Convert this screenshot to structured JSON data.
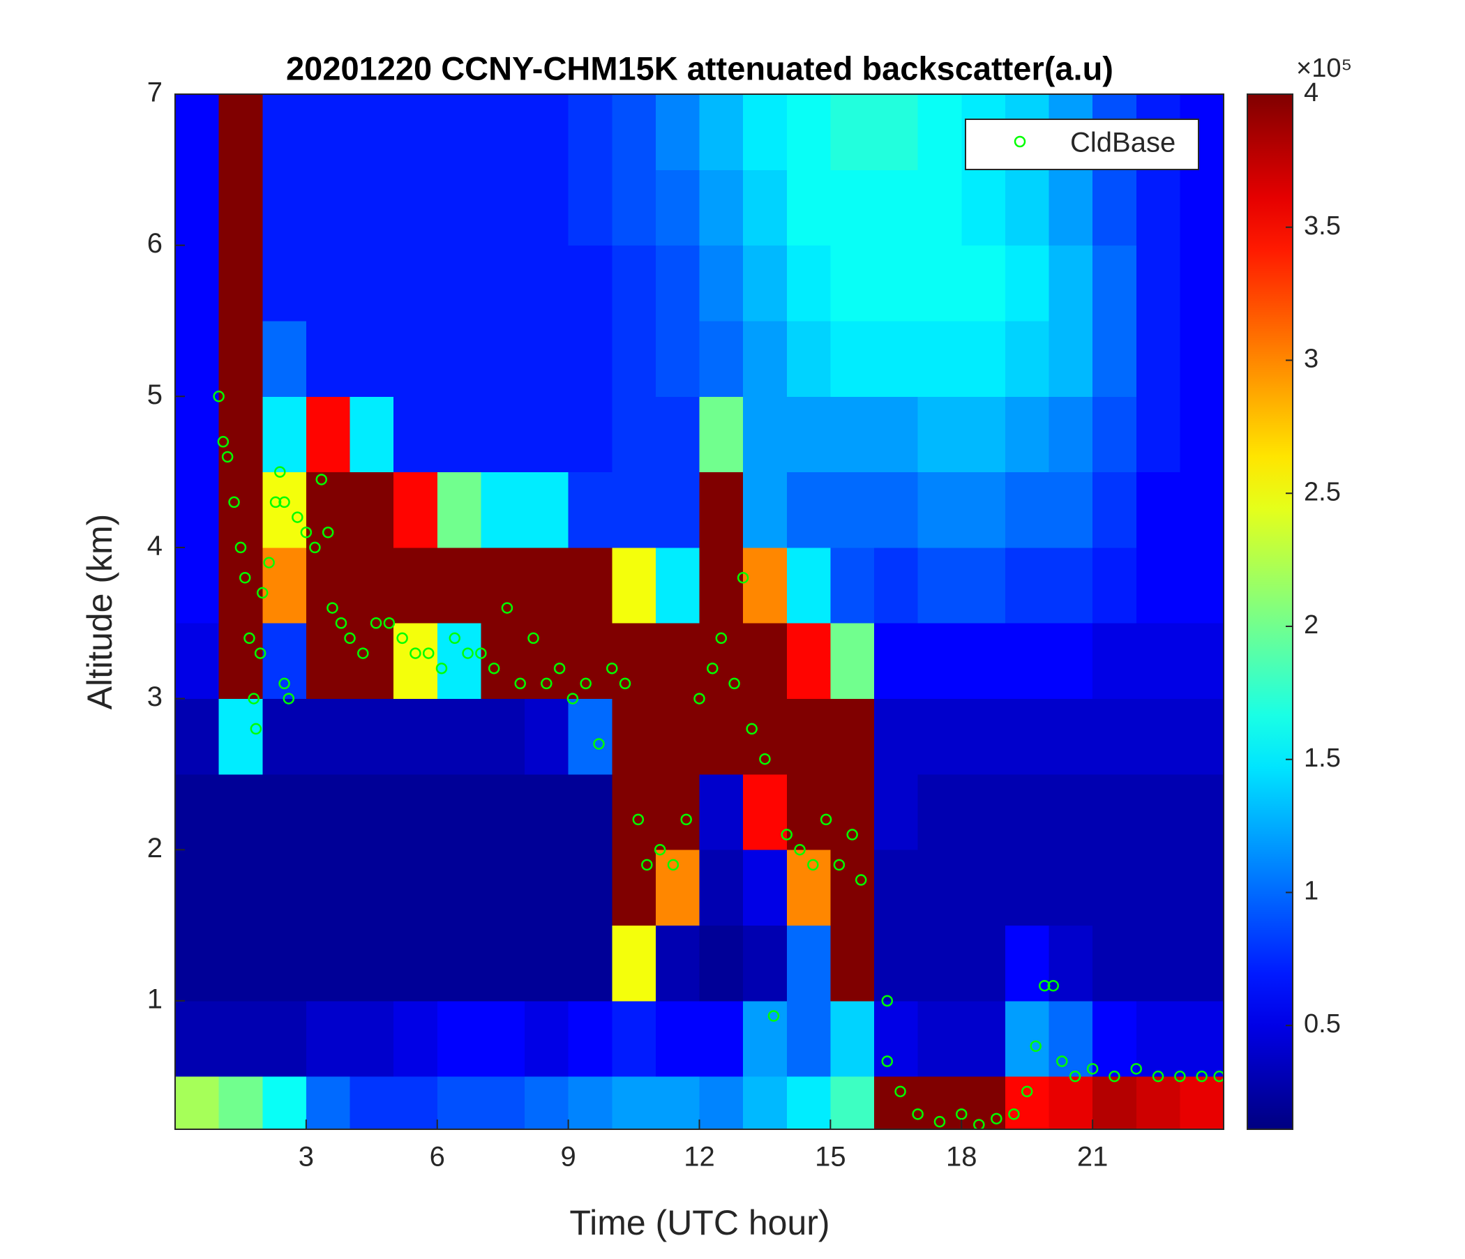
{
  "chart_data": {
    "type": "heatmap",
    "title": "20201220 CCNY-CHM15K attenuated backscatter(a.u)",
    "x_label": "Time (UTC hour)",
    "y_label": "Altitude (km)",
    "xlim": [
      0,
      24
    ],
    "ylim": [
      0.15,
      7
    ],
    "xticks": [
      3,
      6,
      9,
      12,
      15,
      18,
      21
    ],
    "yticks": [
      1,
      2,
      3,
      4,
      5,
      6,
      7
    ],
    "x_bins": [
      0,
      1,
      2,
      3,
      4,
      5,
      6,
      7,
      8,
      9,
      10,
      11,
      12,
      13,
      14,
      15,
      16,
      17,
      18,
      19,
      20,
      21,
      22,
      23,
      24
    ],
    "y_bins": [
      0.15,
      0.5,
      1,
      1.5,
      2,
      2.5,
      3,
      3.5,
      4,
      4.5,
      5,
      5.5,
      6,
      6.5,
      7
    ],
    "values": [
      [
        2.2,
        2.0,
        1.6,
        1.0,
        0.8,
        0.8,
        0.9,
        0.9,
        1.0,
        1.1,
        1.2,
        1.2,
        1.1,
        1.3,
        1.5,
        1.8,
        4,
        4,
        4,
        3.5,
        3.6,
        3.8,
        3.7,
        3.6
      ],
      [
        0.3,
        0.3,
        0.3,
        0.4,
        0.4,
        0.5,
        0.6,
        0.6,
        0.5,
        0.6,
        0.7,
        0.6,
        0.6,
        1.2,
        1.0,
        1.4,
        0.5,
        0.4,
        0.4,
        1.2,
        1.0,
        0.6,
        0.5,
        0.5
      ],
      [
        0.2,
        0.2,
        0.2,
        0.2,
        0.2,
        0.2,
        0.2,
        0.2,
        0.2,
        0.2,
        2.5,
        0.3,
        0.2,
        0.3,
        1.0,
        4,
        0.3,
        0.3,
        0.3,
        0.6,
        0.4,
        0.3,
        0.3,
        0.3
      ],
      [
        0.2,
        0.2,
        0.2,
        0.2,
        0.2,
        0.2,
        0.2,
        0.2,
        0.2,
        0.2,
        4,
        3.0,
        0.3,
        0.5,
        3.0,
        4,
        0.3,
        0.3,
        0.3,
        0.3,
        0.3,
        0.3,
        0.3,
        0.3
      ],
      [
        0.2,
        0.2,
        0.2,
        0.2,
        0.2,
        0.2,
        0.2,
        0.2,
        0.2,
        0.2,
        4,
        4,
        0.4,
        3.5,
        4,
        4,
        0.4,
        0.3,
        0.3,
        0.3,
        0.3,
        0.3,
        0.3,
        0.3
      ],
      [
        0.3,
        1.5,
        0.3,
        0.3,
        0.3,
        0.3,
        0.3,
        0.3,
        0.4,
        1.0,
        4,
        4,
        4,
        4,
        4,
        4,
        0.4,
        0.4,
        0.4,
        0.4,
        0.4,
        0.4,
        0.4,
        0.4
      ],
      [
        0.5,
        4,
        0.8,
        4,
        4,
        2.5,
        1.5,
        4,
        4,
        4,
        4,
        4,
        4,
        4,
        3.5,
        2.0,
        0.6,
        0.6,
        0.6,
        0.6,
        0.6,
        0.5,
        0.5,
        0.5
      ],
      [
        0.6,
        4,
        3.0,
        4,
        4,
        4,
        4,
        4,
        4,
        4,
        2.5,
        1.5,
        4,
        3.0,
        1.5,
        0.9,
        0.8,
        0.9,
        0.9,
        0.8,
        0.8,
        0.7,
        0.6,
        0.6
      ],
      [
        0.6,
        4,
        2.5,
        4,
        4,
        3.5,
        2.0,
        1.5,
        1.5,
        0.8,
        0.8,
        0.8,
        4,
        1.2,
        1.0,
        1.0,
        1.0,
        1.1,
        1.1,
        1.0,
        1.0,
        0.8,
        0.6,
        0.6
      ],
      [
        0.6,
        4,
        1.5,
        3.5,
        1.5,
        0.7,
        0.7,
        0.7,
        0.7,
        0.7,
        0.8,
        0.8,
        2.0,
        1.2,
        1.2,
        1.2,
        1.2,
        1.3,
        1.3,
        1.2,
        1.1,
        0.9,
        0.7,
        0.6
      ],
      [
        0.6,
        4,
        1.0,
        0.7,
        0.7,
        0.7,
        0.7,
        0.7,
        0.7,
        0.7,
        0.8,
        0.9,
        1.0,
        1.2,
        1.4,
        1.5,
        1.5,
        1.5,
        1.5,
        1.4,
        1.3,
        1.0,
        0.7,
        0.6
      ],
      [
        0.6,
        4,
        0.7,
        0.7,
        0.7,
        0.7,
        0.7,
        0.7,
        0.7,
        0.7,
        0.8,
        0.9,
        1.1,
        1.3,
        1.5,
        1.6,
        1.6,
        1.6,
        1.6,
        1.5,
        1.3,
        1.0,
        0.7,
        0.6
      ],
      [
        0.6,
        4,
        0.7,
        0.7,
        0.7,
        0.7,
        0.7,
        0.7,
        0.7,
        0.8,
        0.9,
        1.0,
        1.2,
        1.4,
        1.6,
        1.6,
        1.6,
        1.6,
        1.5,
        1.4,
        1.2,
        0.9,
        0.7,
        0.6
      ],
      [
        0.6,
        4,
        0.7,
        0.7,
        0.7,
        0.7,
        0.7,
        0.7,
        0.7,
        0.8,
        0.9,
        1.1,
        1.3,
        1.5,
        1.6,
        1.7,
        1.7,
        1.6,
        1.5,
        1.4,
        1.2,
        0.9,
        0.7,
        0.6
      ]
    ],
    "colormap": "jet",
    "clim": [
      0.11,
      4
    ],
    "cticks": [
      0.5,
      1,
      1.5,
      2,
      2.5,
      3,
      3.5,
      4
    ],
    "colorbar_scale": "×10⁵",
    "legend": "upper right",
    "series": [
      {
        "name": "CldBase",
        "type": "scatter",
        "color": "#00ff00",
        "x": [
          1.0,
          1.1,
          1.2,
          1.35,
          1.5,
          1.6,
          1.7,
          1.8,
          1.85,
          1.95,
          2.0,
          2.15,
          2.3,
          2.4,
          2.5,
          2.5,
          2.6,
          2.8,
          3.0,
          3.2,
          3.35,
          3.5,
          3.6,
          3.8,
          4.0,
          4.3,
          4.6,
          4.9,
          5.2,
          5.5,
          5.8,
          6.1,
          6.4,
          6.7,
          7.0,
          7.3,
          7.6,
          7.9,
          8.2,
          8.5,
          8.8,
          9.1,
          9.4,
          9.7,
          10.0,
          10.3,
          10.6,
          10.8,
          11.1,
          11.4,
          11.7,
          12.0,
          12.3,
          12.5,
          12.8,
          13.0,
          13.2,
          13.5,
          13.7,
          14.0,
          14.3,
          14.6,
          14.9,
          15.2,
          15.5,
          15.7,
          16.3,
          16.3,
          16.6,
          17.0,
          17.5,
          18.0,
          18.4,
          18.8,
          19.2,
          19.5,
          19.7,
          19.9,
          20.1,
          20.3,
          20.6,
          21.0,
          21.5,
          22.0,
          22.5,
          23.0,
          23.5,
          23.9
        ],
        "values": [
          5.0,
          4.7,
          4.6,
          4.3,
          4.0,
          3.8,
          3.4,
          3.0,
          2.8,
          3.3,
          3.7,
          3.9,
          4.3,
          4.5,
          4.3,
          3.1,
          3.0,
          4.2,
          4.1,
          4.0,
          4.45,
          4.1,
          3.6,
          3.5,
          3.4,
          3.3,
          3.5,
          3.5,
          3.4,
          3.3,
          3.3,
          3.2,
          3.4,
          3.3,
          3.3,
          3.2,
          3.6,
          3.1,
          3.4,
          3.1,
          3.2,
          3.0,
          3.1,
          2.7,
          3.2,
          3.1,
          2.2,
          1.9,
          2.0,
          1.9,
          2.2,
          3.0,
          3.2,
          3.4,
          3.1,
          3.8,
          2.8,
          2.6,
          0.9,
          2.1,
          2.0,
          1.9,
          2.2,
          1.9,
          2.1,
          1.8,
          1.0,
          0.6,
          0.4,
          0.25,
          0.2,
          0.25,
          0.18,
          0.22,
          0.25,
          0.4,
          0.7,
          1.1,
          1.1,
          0.6,
          0.5,
          0.55,
          0.5,
          0.55,
          0.5,
          0.5,
          0.5,
          0.5
        ]
      }
    ]
  }
}
